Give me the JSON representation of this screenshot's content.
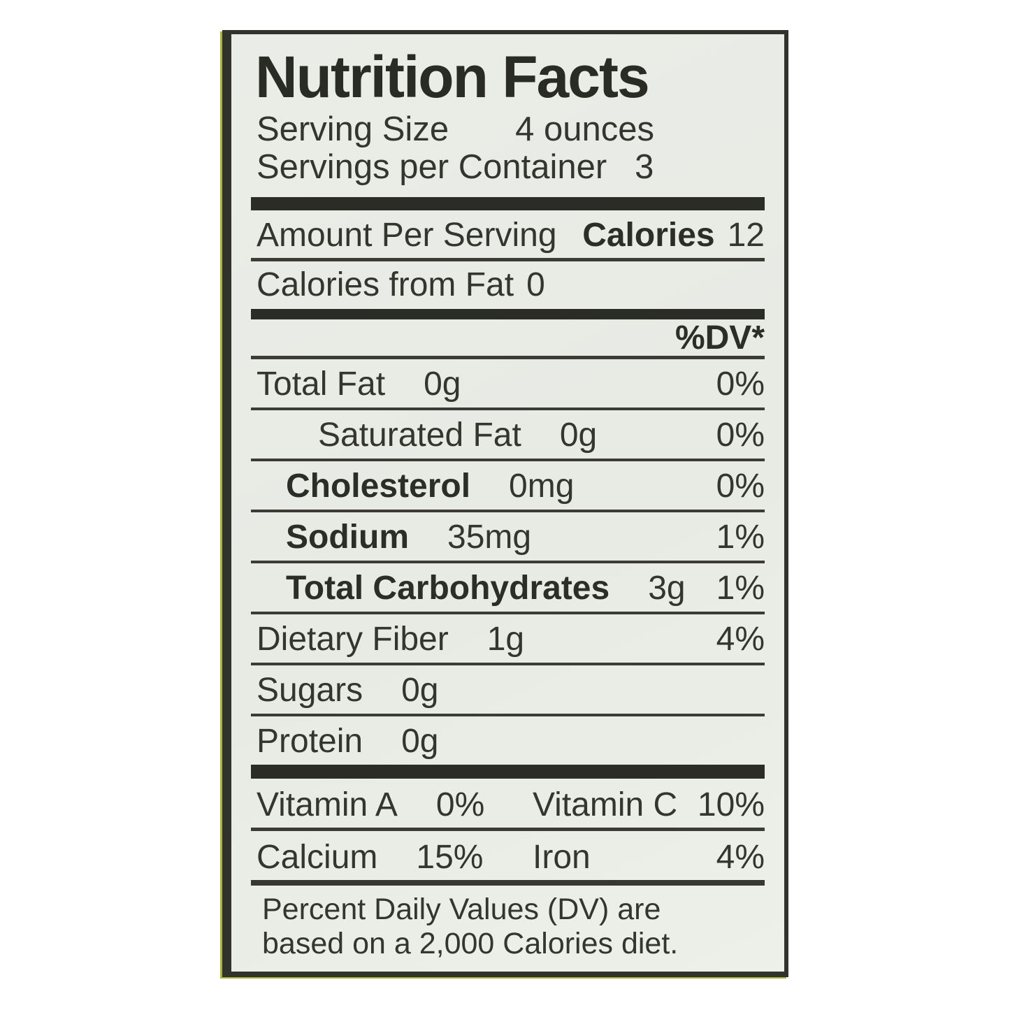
{
  "label": {
    "title": "Nutrition Facts",
    "serving": [
      {
        "name": "Serving Size",
        "value": "4 ounces"
      },
      {
        "name": "Servings per Container",
        "value": "3"
      }
    ],
    "amount_per_serving": {
      "prefix": "Amount Per Serving",
      "calories_label": "Calories",
      "calories_value": "12"
    },
    "calories_from_fat": {
      "label": "Calories from Fat",
      "value": "0"
    },
    "dv_header": "%DV*",
    "nutrients": [
      {
        "label": "Total Fat",
        "value": "0g",
        "dv": "0%"
      },
      {
        "label": "Saturated Fat",
        "value": "0g",
        "dv": "0%"
      },
      {
        "label": "Cholesterol",
        "value": "0mg",
        "dv": "0%"
      },
      {
        "label": "Sodium",
        "value": "35mg",
        "dv": "1%"
      },
      {
        "label": "Total Carbohydrates",
        "value": "3g",
        "dv": "1%"
      },
      {
        "label": "Dietary Fiber",
        "value": "1g",
        "dv": "4%"
      },
      {
        "label": "Sugars",
        "value": "0g",
        "dv": ""
      },
      {
        "label": "Protein",
        "value": "0g",
        "dv": ""
      }
    ],
    "micronutrients": [
      {
        "left_label": "Vitamin A",
        "left_value": "0%",
        "right_label": "Vitamin C",
        "right_value": "10%"
      },
      {
        "left_label": "Calcium",
        "left_value": "15%",
        "right_label": "Iron",
        "right_value": "4%"
      }
    ],
    "footnote_line1": "Percent Daily Values (DV) are",
    "footnote_line2": "based on a 2,000 Calories diet.",
    "colors": {
      "label_background": "#eaece7",
      "text": "#35352f",
      "rule": "#3c3c35",
      "bar": "#2c2c27",
      "edge_accent_green": "#a9b43a"
    }
  }
}
